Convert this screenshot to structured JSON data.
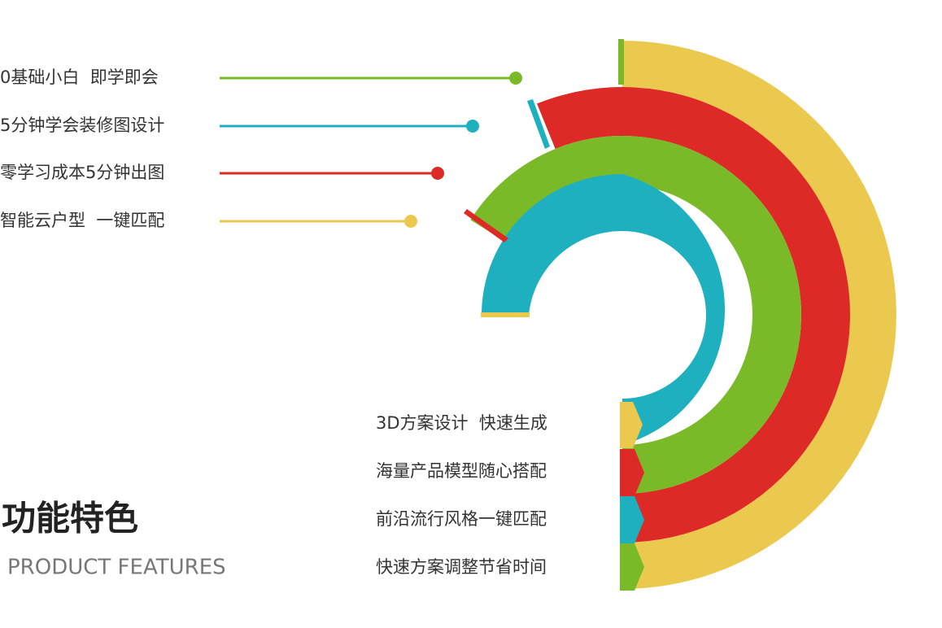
{
  "features_top": [
    "0基础小白  即学即会",
    "5分钟学会装修图设计",
    "零学习成本5分钟出图",
    "智能云户型  一键匹配"
  ],
  "features_bottom": [
    "3D方案设计  快速生成",
    "海量产品模型随心搭配",
    "前沿流行风格一键匹配",
    "快速方案调整节省时间"
  ],
  "heading": {
    "title": "功能特色",
    "subtitle": "PRODUCT FEATURES"
  }
}
